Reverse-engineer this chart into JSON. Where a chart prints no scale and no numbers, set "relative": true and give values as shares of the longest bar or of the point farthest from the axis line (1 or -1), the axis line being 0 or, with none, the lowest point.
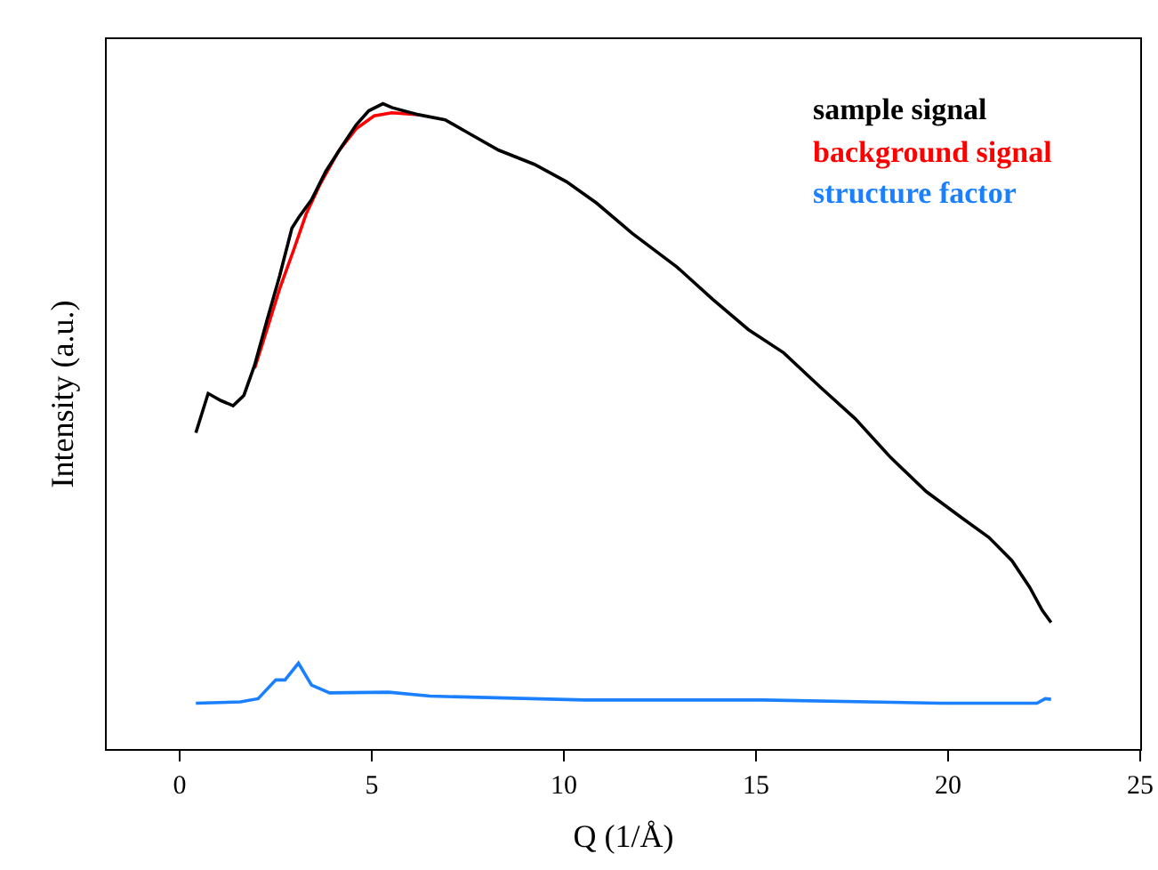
{
  "chart_data": {
    "type": "line",
    "xlabel": "Q (1/Å)",
    "ylabel": "Intensity (a.u.)",
    "relative": true,
    "xlim": [
      -1.9,
      25
    ],
    "xticks": [
      0,
      5,
      10,
      15,
      20,
      25
    ],
    "tick_labels": "x",
    "grid": false,
    "legend": "top right",
    "marker": "none",
    "line_style": "solid",
    "series": [
      {
        "name": "background signal",
        "color": "#ff0000",
        "x": [
          1.95,
          2.27,
          2.6,
          2.97,
          3.29,
          3.66,
          4.13,
          4.59,
          5.06,
          5.52,
          6.21
        ],
        "values": [
          0.59,
          0.65,
          0.713,
          0.774,
          0.829,
          0.876,
          0.926,
          0.961,
          0.981,
          0.986,
          0.983
        ]
      },
      {
        "name": "sample signal",
        "color": "#000000",
        "x": [
          0.42,
          0.74,
          1.07,
          1.39,
          1.67,
          1.95,
          2.27,
          2.6,
          2.92,
          3.1,
          3.43,
          3.8,
          4.22,
          4.59,
          4.92,
          5.29,
          5.52,
          6.21,
          6.91,
          7.47,
          8.3,
          9.23,
          10.07,
          10.85,
          11.78,
          12.94,
          13.87,
          14.8,
          15.72,
          16.65,
          17.58,
          18.5,
          19.43,
          20.36,
          21.06,
          21.66,
          22.12,
          22.45,
          22.68
        ],
        "values": [
          0.49,
          0.551,
          0.54,
          0.532,
          0.548,
          0.595,
          0.664,
          0.733,
          0.807,
          0.824,
          0.851,
          0.895,
          0.934,
          0.967,
          0.989,
          1.0,
          0.994,
          0.983,
          0.975,
          0.956,
          0.928,
          0.906,
          0.879,
          0.846,
          0.799,
          0.747,
          0.697,
          0.65,
          0.614,
          0.562,
          0.512,
          0.452,
          0.399,
          0.358,
          0.328,
          0.292,
          0.251,
          0.215,
          0.196
        ]
      },
      {
        "name": "structure factor",
        "color": "#1a80ff",
        "x": [
          0.42,
          1.58,
          2.04,
          2.5,
          2.74,
          3.09,
          3.43,
          3.9,
          5.44,
          6.52,
          10.53,
          15.17,
          19.8,
          22.31,
          22.53,
          22.68
        ],
        "values": [
          0.071,
          0.073,
          0.078,
          0.107,
          0.107,
          0.133,
          0.099,
          0.087,
          0.088,
          0.082,
          0.076,
          0.076,
          0.071,
          0.071,
          0.078,
          0.077
        ]
      }
    ]
  }
}
